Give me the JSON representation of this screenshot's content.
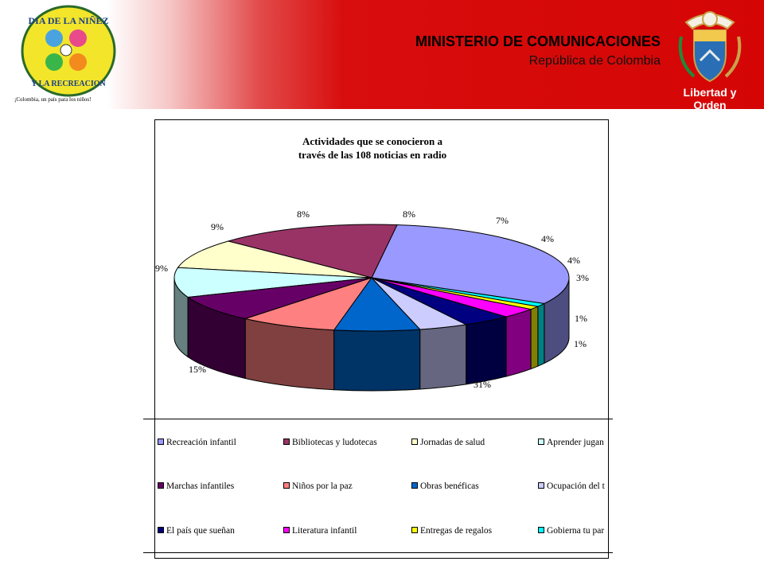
{
  "header": {
    "title": "MINISTERIO DE COMUNICACIONES",
    "subtitle": "República de Colombia",
    "logo_left": {
      "line1": "DIA DE LA NIÑEZ",
      "line2": "Y LA RECREACION",
      "tagline": "¡Colombia, un país para los niños!"
    },
    "crest_motto": "Libertad y Orden"
  },
  "colors": {
    "header_red": "#d50505"
  },
  "chart_data": {
    "type": "pie",
    "three_d": true,
    "title": "Actividades que se conocieron a través de las 108 noticias en radio",
    "title_lines": [
      "Actividades que se conocieron a",
      "través de las 108 noticias en radio"
    ],
    "legend_position": "bottom",
    "slices": [
      {
        "label": "Recreación infantil",
        "legend_text": "Recreación infantil",
        "value": 31,
        "display": "31%",
        "color": "#9999ff"
      },
      {
        "label": "Bibliotecas y ludotecas",
        "legend_text": "Bibliotecas y ludotecas",
        "value": 15,
        "display": "15%",
        "color": "#993366"
      },
      {
        "label": "Jornadas de salud",
        "legend_text": "Jornadas de salud",
        "value": 9,
        "display": "9%",
        "color": "#ffffcc"
      },
      {
        "label": "Aprender jugando",
        "legend_text": "Aprender jugan",
        "value": 9,
        "display": "9%",
        "color": "#ccffff"
      },
      {
        "label": "Marchas infantiles",
        "legend_text": "Marchas infantiles",
        "value": 8,
        "display": "8%",
        "color": "#660066"
      },
      {
        "label": "Niños por la paz",
        "legend_text": "Niños por la paz",
        "value": 8,
        "display": "8%",
        "color": "#ff8080"
      },
      {
        "label": "Obras benéficas",
        "legend_text": "Obras benéficas",
        "value": 7,
        "display": "7%",
        "color": "#0066cc"
      },
      {
        "label": "Ocupación del tiempo",
        "legend_text": "Ocupación del t",
        "value": 4,
        "display": "4%",
        "color": "#ccccff"
      },
      {
        "label": "El país que sueñan",
        "legend_text": "El país que sueñan",
        "value": 4,
        "display": "4%",
        "color": "#000080"
      },
      {
        "label": "Literatura infantil",
        "legend_text": "Literatura infantil",
        "value": 3,
        "display": "3%",
        "color": "#ff00ff"
      },
      {
        "label": "Entregas de regalos",
        "legend_text": "Entregas de regalos",
        "value": 1,
        "display": "1%",
        "color": "#ffff00"
      },
      {
        "label": "Gobierna tu país",
        "legend_text": "Gobierna tu par",
        "value": 1,
        "display": "1%",
        "color": "#00ffff"
      }
    ]
  }
}
